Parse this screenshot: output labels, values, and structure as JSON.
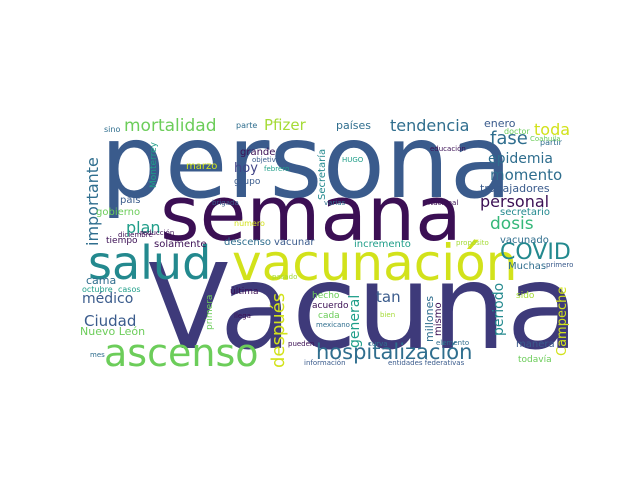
{
  "colors": {
    "background": "#ffffff",
    "darkest": "#3b0f54",
    "dark_indigo": "#3e3a7a",
    "indigo": "#414487",
    "blue": "#3a5b8c",
    "teal_blue": "#2f6e8e",
    "teal": "#23898e",
    "sea_green": "#1f9e89",
    "green": "#35b779",
    "light_green": "#6ccd5a",
    "lime": "#a5db36",
    "yellow": "#d2e21b"
  },
  "words": [
    {
      "id": "vacuna",
      "text": "Vacuna",
      "color": "#3e3a7a"
    },
    {
      "id": "persona",
      "text": "persona",
      "color": "#3a5b8c"
    },
    {
      "id": "semana",
      "text": "semana",
      "color": "#3b0f54"
    },
    {
      "id": "vacunacion",
      "text": "vacunación",
      "color": "#d2e21b"
    },
    {
      "id": "salud",
      "text": "salud",
      "color": "#23898e"
    },
    {
      "id": "ascenso",
      "text": "ascenso",
      "color": "#6ccd5a"
    },
    {
      "id": "hospitalizacion",
      "text": "hospitalización",
      "color": "#2f6e8e"
    },
    {
      "id": "covid",
      "text": "COVID",
      "color": "#23898e"
    },
    {
      "id": "mortalidad",
      "text": "mortalidad",
      "color": "#6ccd5a"
    },
    {
      "id": "tendencia",
      "text": "tendencia",
      "color": "#2f6e8e"
    },
    {
      "id": "toda",
      "text": "toda",
      "color": "#d2e21b"
    },
    {
      "id": "pfizer",
      "text": "Pfizer",
      "color": "#a5db36"
    },
    {
      "id": "importante",
      "text": "importante",
      "color": "#2f6e8e"
    },
    {
      "id": "fase",
      "text": "fase",
      "color": "#2f6e8e"
    },
    {
      "id": "epidemia",
      "text": "epidemia",
      "color": "#2f6e8e"
    },
    {
      "id": "momento",
      "text": "momento",
      "color": "#2f6e8e"
    },
    {
      "id": "personal",
      "text": "personal",
      "color": "#3b0f54"
    },
    {
      "id": "dosis",
      "text": "dosis",
      "color": "#35b779"
    },
    {
      "id": "plan",
      "text": "plan",
      "color": "#1f9e89"
    },
    {
      "id": "despues",
      "text": "después",
      "color": "#d2e21b"
    },
    {
      "id": "general",
      "text": "general",
      "color": "#1f9e89"
    },
    {
      "id": "ciudad",
      "text": "Ciudad",
      "color": "#3a5b8c"
    },
    {
      "id": "medico",
      "text": "médico",
      "color": "#3a5b8c"
    },
    {
      "id": "tan",
      "text": "tan",
      "color": "#3a5b8c"
    },
    {
      "id": "periodo",
      "text": "periodo",
      "color": "#23898e"
    },
    {
      "id": "campeche",
      "text": "Campeche",
      "color": "#d2e21b"
    },
    {
      "id": "hoy",
      "text": "hoy",
      "color": "#414487"
    },
    {
      "id": "pais",
      "text": "país",
      "color": "#3a5b8c"
    },
    {
      "id": "cama",
      "text": "cama",
      "color": "#2f6e8e"
    },
    {
      "id": "paises",
      "text": "países",
      "color": "#2f6e8e"
    },
    {
      "id": "enero",
      "text": "enero",
      "color": "#3a5b8c"
    },
    {
      "id": "grande",
      "text": "grande",
      "color": "#3b0f54"
    },
    {
      "id": "nuevo_leon",
      "text": "Nuevo León",
      "color": "#6ccd5a"
    },
    {
      "id": "millones",
      "text": "millones",
      "color": "#2f6e8e"
    },
    {
      "id": "mismo",
      "text": "mismo",
      "color": "#3b0f54"
    },
    {
      "id": "secretaria",
      "text": "Secretaría",
      "color": "#23898e"
    },
    {
      "id": "secretario",
      "text": "secretario",
      "color": "#23898e"
    },
    {
      "id": "trabajadores",
      "text": "trabajadores",
      "color": "#3a5b8c"
    },
    {
      "id": "vacunado",
      "text": "vacunado",
      "color": "#2f6e8e"
    },
    {
      "id": "muchas",
      "text": "Muchas",
      "color": "#2f6e8e"
    },
    {
      "id": "vacunar",
      "text": "vacunar",
      "color": "#3a5b8c"
    },
    {
      "id": "descenso",
      "text": "descenso",
      "color": "#2f6e8e"
    },
    {
      "id": "incremento",
      "text": "incremento",
      "color": "#1f9e89"
    },
    {
      "id": "gobierno",
      "text": "gobierno",
      "color": "#6ccd5a"
    },
    {
      "id": "solamente",
      "text": "solamente",
      "color": "#3b0f54"
    },
    {
      "id": "marzo",
      "text": "marzo",
      "color": "#d2e21b"
    },
    {
      "id": "grupo",
      "text": "grupo",
      "color": "#3a5b8c"
    },
    {
      "id": "manera",
      "text": "manera",
      "color": "#3a5b8c"
    },
    {
      "id": "hecho",
      "text": "hecho",
      "color": "#6ccd5a"
    },
    {
      "id": "acuerdo",
      "text": "acuerdo",
      "color": "#3b0f54"
    },
    {
      "id": "cada",
      "text": "cada",
      "color": "#6ccd5a"
    },
    {
      "id": "ultima",
      "text": "última",
      "color": "#3b0f54"
    },
    {
      "id": "primera",
      "text": "primera",
      "color": "#6ccd5a"
    },
    {
      "id": "sido",
      "text": "sido",
      "color": "#a5db36"
    },
    {
      "id": "todavia",
      "text": "todavía",
      "color": "#6ccd5a"
    },
    {
      "id": "monterrey",
      "text": "Monterrey",
      "color": "#1f9e89"
    },
    {
      "id": "tiempo",
      "text": "tiempo",
      "color": "#3b0f54"
    },
    {
      "id": "octubre",
      "text": "octubre",
      "color": "#1f9e89"
    },
    {
      "id": "casos",
      "text": "casos",
      "color": "#1f9e89"
    },
    {
      "id": "parte",
      "text": "parte",
      "color": "#2f6e8e"
    },
    {
      "id": "sino",
      "text": "sino",
      "color": "#2f6e8e"
    },
    {
      "id": "doctor",
      "text": "doctor",
      "color": "#6ccd5a"
    },
    {
      "id": "partir",
      "text": "partir",
      "color": "#2f6e8e"
    },
    {
      "id": "coahuila",
      "text": "Coahuila",
      "color": "#6ccd5a"
    },
    {
      "id": "educacion",
      "text": "educación",
      "color": "#3b0f54"
    },
    {
      "id": "objetivo",
      "text": "objetivo",
      "color": "#3a5b8c"
    },
    {
      "id": "febrero",
      "text": "febrero",
      "color": "#1f9e89"
    },
    {
      "id": "hugo",
      "text": "HUGO",
      "color": "#1f9e89"
    },
    {
      "id": "brigada",
      "text": "brigada",
      "color": "#3a5b8c"
    },
    {
      "id": "varias",
      "text": "varias",
      "color": "#2f6e8e"
    },
    {
      "id": "nacional",
      "text": "Nacional",
      "color": "#3b0f54"
    },
    {
      "id": "numero",
      "text": "número",
      "color": "#d2e21b"
    },
    {
      "id": "reduccion",
      "text": "reducción",
      "color": "#3b0f54"
    },
    {
      "id": "diciembre",
      "text": "diciembre",
      "color": "#3b0f54"
    },
    {
      "id": "proposito",
      "text": "propósito",
      "color": "#a5db36"
    },
    {
      "id": "primero",
      "text": "primero",
      "color": "#3a5b8c"
    },
    {
      "id": "pasado",
      "text": "pasado",
      "color": "#a5db36"
    },
    {
      "id": "llega",
      "text": "llega",
      "color": "#3b0f54"
    },
    {
      "id": "mexicano",
      "text": "mexicano",
      "color": "#2f6e8e"
    },
    {
      "id": "bien",
      "text": "bien",
      "color": "#a5db36"
    },
    {
      "id": "elemento",
      "text": "elemento",
      "color": "#2f6e8e"
    },
    {
      "id": "pueden",
      "text": "pueden",
      "color": "#3b0f54"
    },
    {
      "id": "curva",
      "text": "curva",
      "color": "#2f6e8e"
    },
    {
      "id": "mes",
      "text": "mes",
      "color": "#2f6e8e"
    },
    {
      "id": "informacion",
      "text": "información",
      "color": "#3a5b8c"
    },
    {
      "id": "entidades",
      "text": "entidades federativas",
      "color": "#3a5b8c"
    }
  ]
}
